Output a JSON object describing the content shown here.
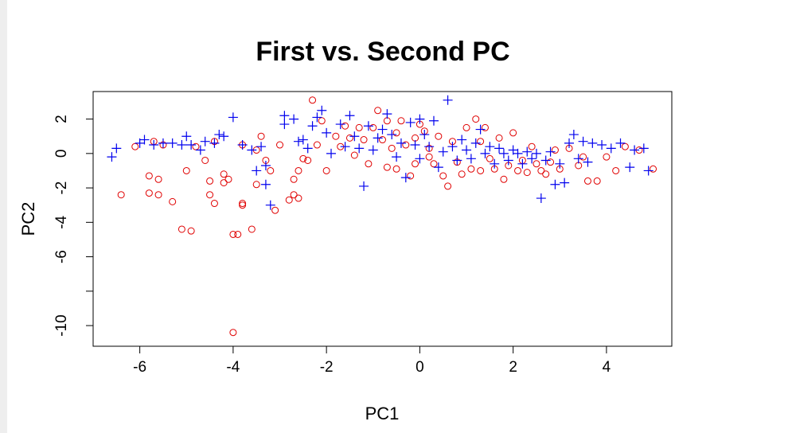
{
  "chart_data": {
    "type": "scatter",
    "title": "First vs. Second PC",
    "xlabel": "PC1",
    "ylabel": "PC2",
    "xlim": [
      -7.0,
      5.4
    ],
    "ylim": [
      -11.2,
      3.6
    ],
    "xticks": [
      -6,
      -4,
      -2,
      0,
      2,
      4
    ],
    "yticks": [
      2,
      0,
      -2,
      -4,
      -6,
      -10
    ],
    "grid": false,
    "colors": {
      "circle": "#e00000",
      "plus": "#0000ee"
    },
    "series": [
      {
        "marker": "circle",
        "color": "#e00000",
        "points": [
          [
            -6.4,
            -2.4
          ],
          [
            -6.1,
            0.4
          ],
          [
            -5.8,
            -1.3
          ],
          [
            -5.8,
            -2.3
          ],
          [
            -5.7,
            0.7
          ],
          [
            -5.6,
            -1.5
          ],
          [
            -5.6,
            -2.4
          ],
          [
            -5.5,
            0.5
          ],
          [
            -5.3,
            -2.8
          ],
          [
            -5.1,
            -4.4
          ],
          [
            -5.0,
            -1.0
          ],
          [
            -4.9,
            -4.5
          ],
          [
            -4.8,
            0.4
          ],
          [
            -4.6,
            -0.4
          ],
          [
            -4.5,
            -1.6
          ],
          [
            -4.5,
            -2.4
          ],
          [
            -4.4,
            -2.9
          ],
          [
            -4.4,
            0.7
          ],
          [
            -4.2,
            -1.2
          ],
          [
            -4.2,
            -1.7
          ],
          [
            -4.1,
            -1.5
          ],
          [
            -4.0,
            -4.7
          ],
          [
            -3.9,
            -4.7
          ],
          [
            -4.0,
            -10.4
          ],
          [
            -3.8,
            -3.0
          ],
          [
            -3.8,
            -2.9
          ],
          [
            -3.8,
            0.5
          ],
          [
            -3.6,
            -4.4
          ],
          [
            -3.5,
            -1.8
          ],
          [
            -3.5,
            0.2
          ],
          [
            -3.4,
            1.0
          ],
          [
            -3.3,
            -0.4
          ],
          [
            -3.2,
            -1.0
          ],
          [
            -3.1,
            -3.3
          ],
          [
            -3.0,
            0.5
          ],
          [
            -2.8,
            -2.7
          ],
          [
            -2.7,
            -2.4
          ],
          [
            -2.7,
            -1.5
          ],
          [
            -2.6,
            -2.6
          ],
          [
            -2.6,
            -1.0
          ],
          [
            -2.5,
            -0.3
          ],
          [
            -2.4,
            -0.4
          ],
          [
            -2.3,
            3.1
          ],
          [
            -2.2,
            0.5
          ],
          [
            -2.1,
            1.9
          ],
          [
            -2.0,
            -1.0
          ],
          [
            -1.8,
            1.0
          ],
          [
            -1.7,
            0.4
          ],
          [
            -1.6,
            1.6
          ],
          [
            -1.5,
            0.9
          ],
          [
            -1.4,
            -0.1
          ],
          [
            -1.3,
            1.5
          ],
          [
            -1.2,
            0.8
          ],
          [
            -1.1,
            -0.6
          ],
          [
            -1.0,
            1.5
          ],
          [
            -0.9,
            2.5
          ],
          [
            -0.8,
            0.8
          ],
          [
            -0.7,
            1.9
          ],
          [
            -0.7,
            -0.8
          ],
          [
            -0.6,
            0.3
          ],
          [
            -0.5,
            1.2
          ],
          [
            -0.5,
            -0.9
          ],
          [
            -0.4,
            1.9
          ],
          [
            -0.3,
            0.5
          ],
          [
            -0.2,
            -1.3
          ],
          [
            -0.1,
            0.9
          ],
          [
            -0.1,
            -0.6
          ],
          [
            0.0,
            1.7
          ],
          [
            0.1,
            1.3
          ],
          [
            0.2,
            0.3
          ],
          [
            0.2,
            -0.2
          ],
          [
            0.3,
            -0.6
          ],
          [
            0.4,
            1.0
          ],
          [
            0.5,
            -1.3
          ],
          [
            0.6,
            -1.9
          ],
          [
            0.7,
            0.7
          ],
          [
            0.8,
            -0.5
          ],
          [
            0.9,
            -1.2
          ],
          [
            1.0,
            1.5
          ],
          [
            1.1,
            -0.9
          ],
          [
            1.2,
            2.0
          ],
          [
            1.3,
            0.7
          ],
          [
            1.3,
            -1.0
          ],
          [
            1.4,
            1.5
          ],
          [
            1.5,
            -0.3
          ],
          [
            1.6,
            -0.9
          ],
          [
            1.7,
            0.9
          ],
          [
            1.8,
            -1.5
          ],
          [
            1.9,
            -0.7
          ],
          [
            2.0,
            1.2
          ],
          [
            2.1,
            -1.0
          ],
          [
            2.2,
            -0.4
          ],
          [
            2.3,
            -1.1
          ],
          [
            2.4,
            0.4
          ],
          [
            2.5,
            -0.6
          ],
          [
            2.6,
            -1.0
          ],
          [
            2.7,
            -1.2
          ],
          [
            2.8,
            -0.5
          ],
          [
            2.9,
            0.2
          ],
          [
            3.0,
            -0.9
          ],
          [
            3.2,
            0.3
          ],
          [
            3.4,
            -0.7
          ],
          [
            3.5,
            -0.2
          ],
          [
            3.6,
            -1.6
          ],
          [
            3.8,
            -1.6
          ],
          [
            4.0,
            -0.2
          ],
          [
            4.2,
            -1.0
          ],
          [
            4.4,
            0.4
          ],
          [
            4.7,
            0.2
          ],
          [
            5.0,
            -0.9
          ]
        ]
      },
      {
        "marker": "plus",
        "color": "#0000ee",
        "points": [
          [
            -6.6,
            -0.2
          ],
          [
            -6.5,
            0.3
          ],
          [
            -6.0,
            0.6
          ],
          [
            -5.9,
            0.8
          ],
          [
            -5.7,
            0.5
          ],
          [
            -5.5,
            0.6
          ],
          [
            -5.3,
            0.6
          ],
          [
            -5.1,
            0.5
          ],
          [
            -5.0,
            1.0
          ],
          [
            -4.9,
            0.5
          ],
          [
            -4.7,
            0.2
          ],
          [
            -4.6,
            0.7
          ],
          [
            -4.4,
            0.6
          ],
          [
            -4.3,
            1.1
          ],
          [
            -4.2,
            1.0
          ],
          [
            -4.0,
            2.1
          ],
          [
            -3.8,
            0.5
          ],
          [
            -3.6,
            0.2
          ],
          [
            -3.5,
            -1.0
          ],
          [
            -3.4,
            0.4
          ],
          [
            -3.3,
            -0.7
          ],
          [
            -3.3,
            -1.8
          ],
          [
            -3.2,
            -3.0
          ],
          [
            -2.9,
            2.2
          ],
          [
            -2.9,
            1.7
          ],
          [
            -2.7,
            2.0
          ],
          [
            -2.6,
            0.7
          ],
          [
            -2.5,
            0.8
          ],
          [
            -2.4,
            0.3
          ],
          [
            -2.3,
            1.6
          ],
          [
            -2.2,
            2.1
          ],
          [
            -2.1,
            2.5
          ],
          [
            -2.0,
            1.2
          ],
          [
            -1.9,
            0.0
          ],
          [
            -1.7,
            1.7
          ],
          [
            -1.6,
            0.4
          ],
          [
            -1.5,
            2.2
          ],
          [
            -1.4,
            1.0
          ],
          [
            -1.3,
            0.3
          ],
          [
            -1.2,
            -1.9
          ],
          [
            -1.1,
            1.6
          ],
          [
            -1.0,
            0.2
          ],
          [
            -0.9,
            0.9
          ],
          [
            -0.8,
            1.4
          ],
          [
            -0.7,
            2.3
          ],
          [
            -0.6,
            1.1
          ],
          [
            -0.5,
            -0.2
          ],
          [
            -0.4,
            0.6
          ],
          [
            -0.3,
            -1.4
          ],
          [
            -0.2,
            1.8
          ],
          [
            -0.1,
            0.5
          ],
          [
            0.0,
            2.0
          ],
          [
            0.0,
            -0.3
          ],
          [
            0.1,
            1.1
          ],
          [
            0.2,
            0.4
          ],
          [
            0.3,
            1.9
          ],
          [
            0.4,
            -0.8
          ],
          [
            0.5,
            0.1
          ],
          [
            0.6,
            3.1
          ],
          [
            0.7,
            0.4
          ],
          [
            0.8,
            -0.4
          ],
          [
            0.9,
            0.8
          ],
          [
            1.0,
            0.2
          ],
          [
            1.1,
            -0.3
          ],
          [
            1.2,
            0.6
          ],
          [
            1.3,
            1.4
          ],
          [
            1.4,
            0.0
          ],
          [
            1.5,
            0.4
          ],
          [
            1.6,
            -0.6
          ],
          [
            1.7,
            0.3
          ],
          [
            1.8,
            0.0
          ],
          [
            1.9,
            -0.4
          ],
          [
            2.0,
            0.2
          ],
          [
            2.1,
            0.0
          ],
          [
            2.2,
            -0.6
          ],
          [
            2.3,
            0.1
          ],
          [
            2.4,
            -0.3
          ],
          [
            2.5,
            0.0
          ],
          [
            2.6,
            -2.6
          ],
          [
            2.7,
            -0.4
          ],
          [
            2.8,
            0.1
          ],
          [
            2.9,
            -1.8
          ],
          [
            3.0,
            -0.6
          ],
          [
            3.1,
            -1.7
          ],
          [
            3.2,
            0.6
          ],
          [
            3.3,
            1.1
          ],
          [
            3.4,
            -0.3
          ],
          [
            3.5,
            0.7
          ],
          [
            3.6,
            -0.5
          ],
          [
            3.7,
            0.6
          ],
          [
            3.9,
            0.5
          ],
          [
            4.1,
            0.3
          ],
          [
            4.3,
            0.6
          ],
          [
            4.5,
            -0.8
          ],
          [
            4.6,
            0.2
          ],
          [
            4.8,
            0.3
          ],
          [
            4.9,
            -1.0
          ]
        ]
      }
    ]
  }
}
